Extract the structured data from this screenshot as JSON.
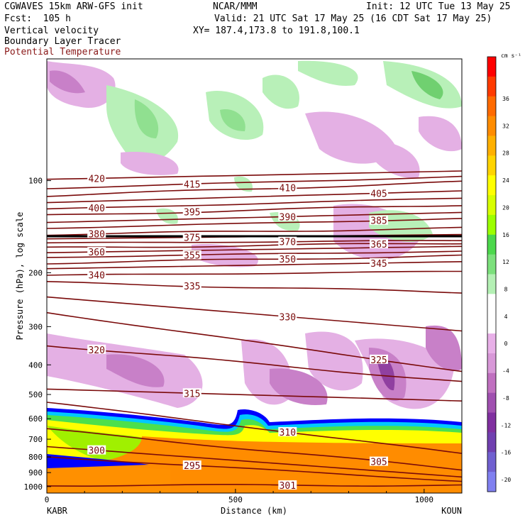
{
  "header": {
    "model": "CGWAVES 15km ARW-GFS init",
    "org": "NCAR/MMM",
    "init": "Init: 12 UTC Tue 13 May 25",
    "fcst": "Fcst:  105 h",
    "valid": "Valid: 21 UTC Sat 17 May 25 (16 CDT Sat 17 May 25)",
    "field1": "Vertical velocity",
    "xy": "XY= 187.4,173.8 to 191.8,100.1",
    "field2": "Boundary Layer Tracer",
    "field3": "Potential Temperature"
  },
  "colorbar": {
    "unit": "cm s⁻¹",
    "ticks": [
      36,
      32,
      28,
      24,
      20,
      16,
      12,
      8,
      4,
      0,
      -4,
      -8,
      -12,
      -16,
      -20
    ],
    "colors": [
      "#ff0000",
      "#ff3a00",
      "#ff6a00",
      "#ff8c00",
      "#ffb000",
      "#ffd400",
      "#ffff00",
      "#d8ff00",
      "#9cff00",
      "#4cd84c",
      "#7ce07c",
      "#b4f0b4",
      "#ffffff",
      "#ffffff",
      "#e8b0e8",
      "#d898d8",
      "#c070c0",
      "#a050b0",
      "#8030a0",
      "#7040b0",
      "#7060d0",
      "#8080f0"
    ]
  },
  "chart_data": {
    "type": "heatmap",
    "xlabel": "Distance (km)",
    "ylabel": "Pressure (hPa), log scale",
    "x_ticks": [
      0,
      500,
      1000
    ],
    "x_range": [
      0,
      1100
    ],
    "y_ticks": [
      100,
      200,
      300,
      400,
      500,
      600,
      700,
      800,
      900,
      1000
    ],
    "y_scale": "log",
    "left_station": "KABR",
    "right_station": "KOUN",
    "theta_contours": [
      {
        "label": "420",
        "x": [
          0,
          1100
        ],
        "p": [
          99,
          93
        ]
      },
      {
        "label": "415",
        "x": [
          0,
          1100
        ],
        "p": [
          106,
          97
        ]
      },
      {
        "label": "410",
        "x": [
          0,
          1100
        ],
        "p": [
          112,
          101
        ]
      },
      {
        "label": "405",
        "x": [
          0,
          1100
        ],
        "p": [
          118,
          108
        ]
      },
      {
        "label": "400",
        "x": [
          0,
          1100
        ],
        "p": [
          124,
          114
        ]
      },
      {
        "label": "395",
        "x": [
          0,
          1100
        ],
        "p": [
          130,
          120
        ]
      },
      {
        "label": "390",
        "x": [
          0,
          1100
        ],
        "p": [
          137,
          127
        ]
      },
      {
        "label": "385",
        "x": [
          0,
          1100
        ],
        "p": [
          143,
          133
        ]
      },
      {
        "label": "380",
        "x": [
          0,
          1100
        ],
        "p": [
          150,
          143
        ]
      },
      {
        "label": "375",
        "x": [
          0,
          1100
        ],
        "p": [
          155,
          150
        ]
      },
      {
        "label": "370",
        "x": [
          0,
          1100
        ],
        "p": [
          160,
          157
        ]
      },
      {
        "label": "365",
        "x": [
          0,
          1100
        ],
        "p": [
          166,
          160
        ]
      },
      {
        "label": "360",
        "x": [
          0,
          1100
        ],
        "p": [
          172,
          164
        ]
      },
      {
        "label": "355",
        "x": [
          0,
          1100
        ],
        "p": [
          178,
          170
        ]
      },
      {
        "label": "350",
        "x": [
          0,
          1100
        ],
        "p": [
          186,
          176
        ]
      },
      {
        "label": "345",
        "x": [
          0,
          1100
        ],
        "p": [
          194,
          184
        ]
      },
      {
        "label": "340",
        "x": [
          0,
          1100
        ],
        "p": [
          204,
          198
        ]
      },
      {
        "label": "335",
        "x": [
          0,
          1100
        ],
        "p": [
          215,
          232
        ]
      },
      {
        "label": "330",
        "x": [
          0,
          1100
        ],
        "p": [
          240,
          310
        ]
      },
      {
        "label": "325",
        "x": [
          0,
          1100
        ],
        "p": [
          270,
          420
        ]
      },
      {
        "label": "320",
        "x": [
          0,
          1100
        ],
        "p": [
          345,
          455
        ]
      },
      {
        "label": "315",
        "x": [
          0,
          1100
        ],
        "p": [
          480,
          525
        ]
      },
      {
        "label": "310",
        "x": [
          0,
          1100
        ],
        "p": [
          530,
          780
        ]
      },
      {
        "label": "305",
        "x": [
          0,
          1100
        ],
        "p": [
          650,
          880
        ]
      },
      {
        "label": "300",
        "x": [
          0,
          1100
        ],
        "p": [
          740,
          930
        ]
      },
      {
        "label": "295",
        "x": [
          0,
          1100
        ],
        "p": [
          800,
          960
        ]
      },
      {
        "label": "301",
        "x": [
          0,
          1100
        ],
        "p": [
          990,
          990
        ]
      }
    ]
  }
}
